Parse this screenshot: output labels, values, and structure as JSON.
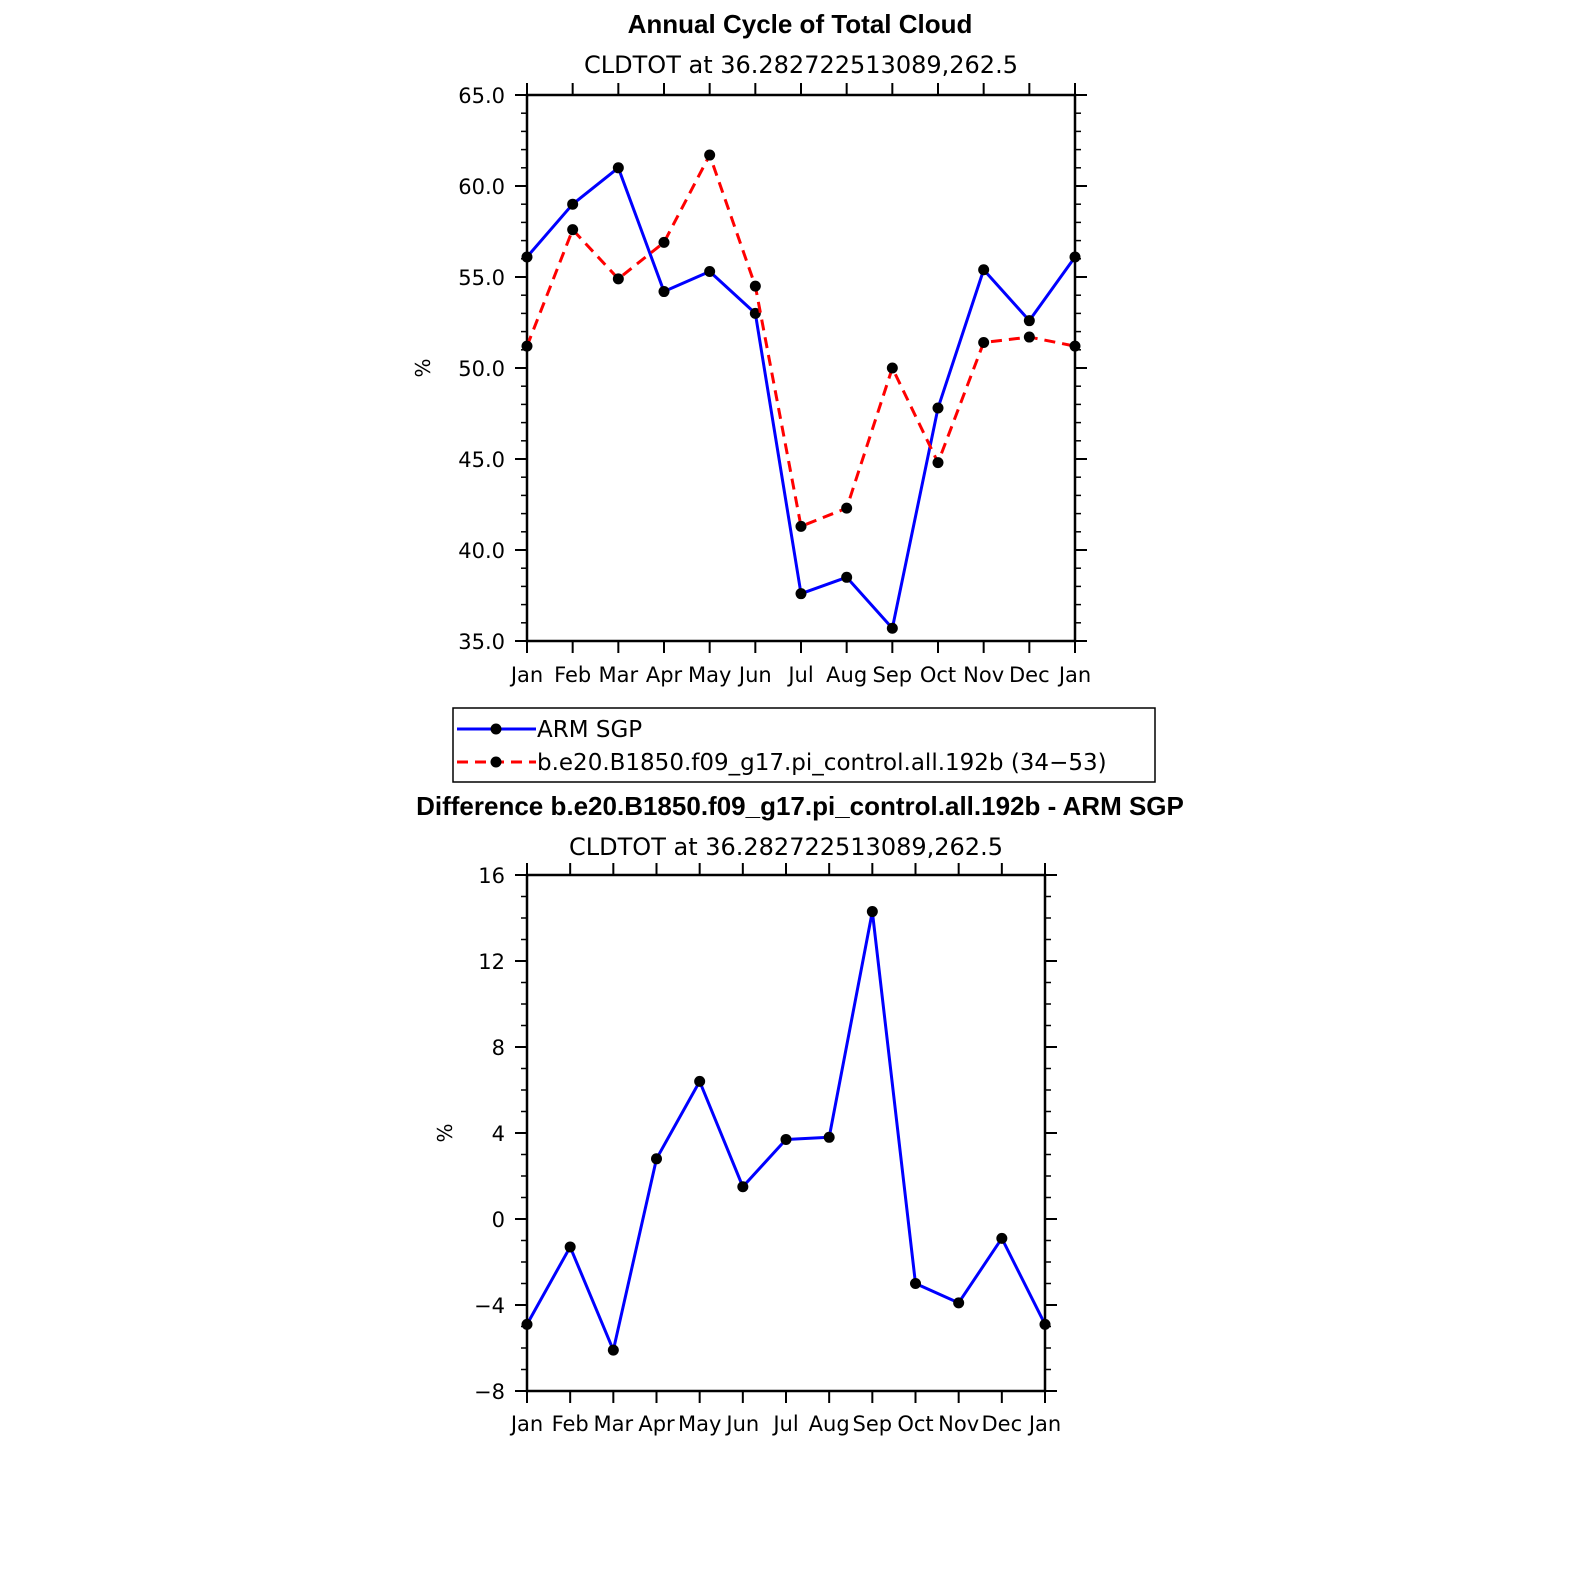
{
  "chart_data": [
    {
      "type": "line",
      "title": "Annual Cycle of Total Cloud",
      "subtitle": "CLDTOT at 36.282722513089,262.5",
      "ylabel": "%",
      "xlabel": "",
      "ylim": [
        35.0,
        65.0
      ],
      "yticks": [
        "35.0",
        "40.0",
        "45.0",
        "50.0",
        "55.0",
        "60.0",
        "65.0"
      ],
      "categories": [
        "Jan",
        "Feb",
        "Mar",
        "Apr",
        "May",
        "Jun",
        "Jul",
        "Aug",
        "Sep",
        "Oct",
        "Nov",
        "Dec",
        "Jan"
      ],
      "series": [
        {
          "name": "ARM SGP",
          "color": "#0000ff",
          "dashed": false,
          "values": [
            56.1,
            59.0,
            61.0,
            54.2,
            55.3,
            53.0,
            37.6,
            38.5,
            35.7,
            47.8,
            55.4,
            52.6,
            56.1
          ]
        },
        {
          "name": "b.e20.B1850.f09_g17.pi_control.all.192b (34−53)",
          "color": "#ff0000",
          "dashed": true,
          "values": [
            51.2,
            57.6,
            54.9,
            56.9,
            61.7,
            54.5,
            41.3,
            42.3,
            50.0,
            44.8,
            51.4,
            51.7,
            51.2
          ]
        }
      ],
      "legend": "below"
    },
    {
      "type": "line",
      "title": "Difference b.e20.B1850.f09_g17.pi_control.all.192b - ARM SGP",
      "subtitle": "CLDTOT at 36.282722513089,262.5",
      "ylabel": "%",
      "xlabel": "",
      "ylim": [
        -8,
        16
      ],
      "yticks": [
        "−8",
        "−4",
        "0",
        "4",
        "8",
        "12",
        "16"
      ],
      "categories": [
        "Jan",
        "Feb",
        "Mar",
        "Apr",
        "May",
        "Jun",
        "Jul",
        "Aug",
        "Sep",
        "Oct",
        "Nov",
        "Dec",
        "Jan"
      ],
      "series": [
        {
          "color": "#0000ff",
          "dashed": false,
          "values": [
            -4.9,
            -1.3,
            -6.1,
            2.8,
            6.4,
            1.5,
            3.7,
            3.8,
            14.3,
            -3.0,
            -3.9,
            -0.9,
            -4.9
          ]
        }
      ]
    }
  ]
}
